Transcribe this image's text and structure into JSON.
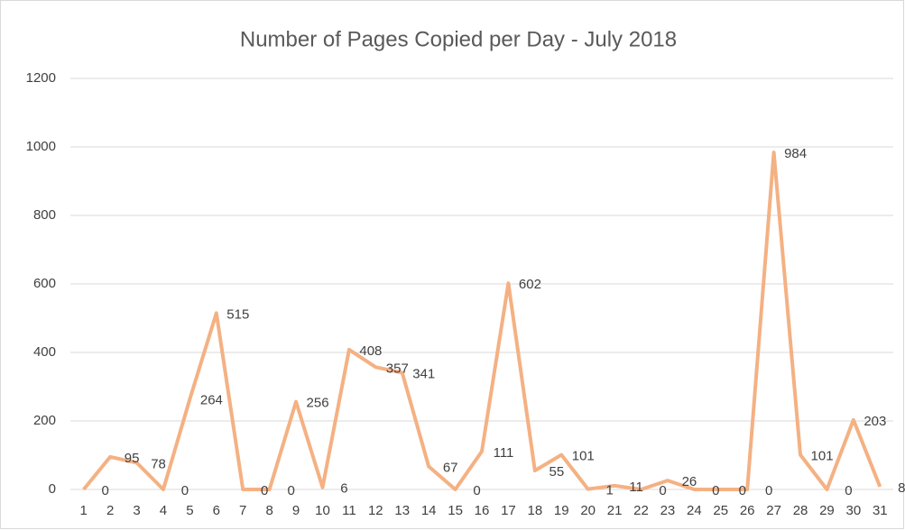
{
  "chart_data": {
    "type": "line",
    "title": "Number of Pages Copied per Day - July 2018",
    "categories": [
      "1",
      "2",
      "3",
      "4",
      "5",
      "6",
      "7",
      "8",
      "9",
      "10",
      "11",
      "12",
      "13",
      "14",
      "15",
      "16",
      "17",
      "18",
      "19",
      "20",
      "21",
      "22",
      "23",
      "24",
      "25",
      "26",
      "27",
      "28",
      "29",
      "30",
      "31"
    ],
    "series": [
      {
        "name": "Pages Copied",
        "color": "#f4b183",
        "values": [
          0,
          95,
          78,
          0,
          264,
          515,
          0,
          0,
          256,
          6,
          408,
          357,
          341,
          67,
          0,
          111,
          602,
          55,
          101,
          1,
          11,
          0,
          26,
          0,
          0,
          0,
          984,
          101,
          0,
          203,
          8
        ]
      }
    ],
    "ylim": [
      0,
      1200
    ],
    "yticks": [
      0,
      200,
      400,
      600,
      800,
      1000,
      1200
    ],
    "grid": true
  }
}
